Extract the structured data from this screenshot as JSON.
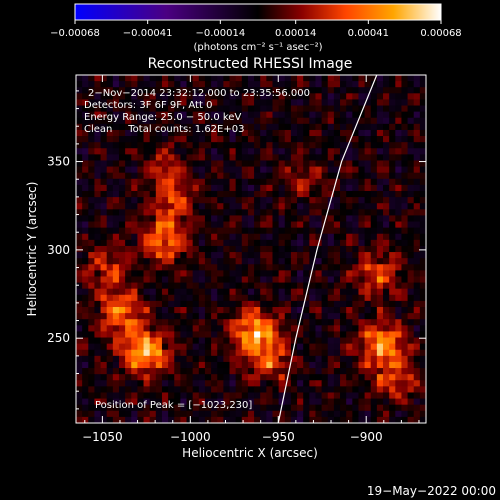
{
  "chart_data": {
    "type": "heatmap",
    "title": "Reconstructed RHESSI Image",
    "xlabel": "Heliocentric X (arcsec)",
    "ylabel": "Heliocentric Y (arcsec)",
    "xlim": [
      -1065,
      -866
    ],
    "ylim": [
      202,
      399
    ],
    "x_ticks": [
      -1050,
      -1000,
      -950,
      -900
    ],
    "x_tick_labels": [
      "−1050",
      "−1000",
      "−950",
      "−900"
    ],
    "y_ticks": [
      250,
      300,
      350
    ],
    "y_tick_labels": [
      "250",
      "300",
      "350"
    ],
    "colorbar": {
      "range": [
        -0.00068,
        0.00068
      ],
      "ticks": [
        -0.00068,
        -0.00041,
        -0.00014,
        0.00014,
        0.00041,
        0.00068
      ],
      "tick_labels": [
        "−0.00068",
        "−0.00041",
        "−0.00014",
        "0.00014",
        "0.00041",
        "0.00068"
      ],
      "units_label": "(photons cm⁻² s⁻¹ asec⁻²)",
      "colormap": [
        "#0000ff",
        "#4b0082",
        "#000000",
        "#8b0000",
        "#ff4500",
        "#ffa500",
        "#ffffff"
      ]
    },
    "annotations": [
      "2−Nov−2014 23:32:12.000 to 23:35:56.000",
      "Detectors: 3F 6F 9F, Att 0",
      "Energy Range: 25.0 − 50.0 keV",
      "Clean     Total counts: 1.62E+03"
    ],
    "peak_label": "Position of Peak = [−1023,230]",
    "sources": [
      {
        "x": -1025,
        "y": 240,
        "peak": 1.0
      },
      {
        "x": -1040,
        "y": 262,
        "peak": 0.75
      },
      {
        "x": -1047,
        "y": 288,
        "peak": 0.55
      },
      {
        "x": -1015,
        "y": 303,
        "peak": 0.75
      },
      {
        "x": -1010,
        "y": 325,
        "peak": 0.55
      },
      {
        "x": -1013,
        "y": 345,
        "peak": 0.4
      },
      {
        "x": -963,
        "y": 252,
        "peak": 0.95
      },
      {
        "x": -955,
        "y": 235,
        "peak": 0.55
      },
      {
        "x": -893,
        "y": 285,
        "peak": 0.6
      },
      {
        "x": -891,
        "y": 245,
        "peak": 0.85
      },
      {
        "x": -883,
        "y": 225,
        "peak": 0.55
      },
      {
        "x": -935,
        "y": 340,
        "peak": 0.35
      }
    ],
    "limb_curve": [
      [
        -950,
        202
      ],
      [
        -940,
        250
      ],
      [
        -928,
        300
      ],
      [
        -914,
        350
      ],
      [
        -894,
        399
      ]
    ]
  },
  "footer": {
    "date": "19−May−2022 00:00"
  }
}
